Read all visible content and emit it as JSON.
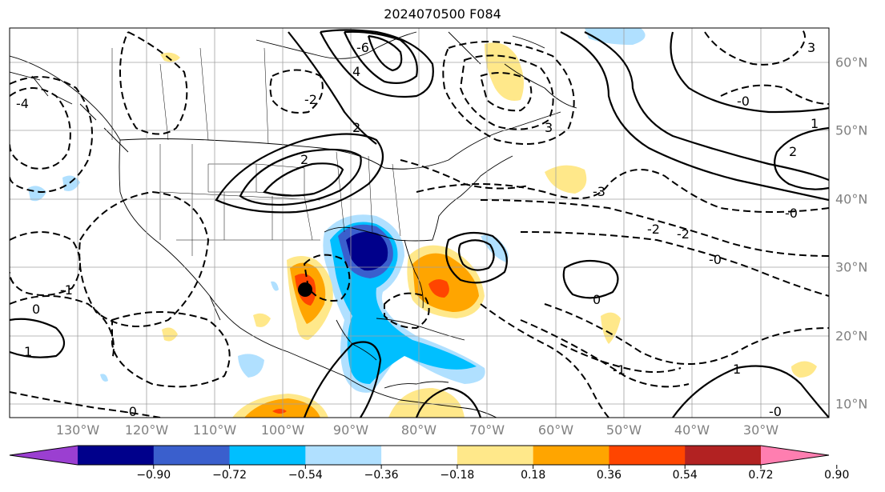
{
  "title": "2024070500 F084",
  "lon_labels": [
    "130°W",
    "120°W",
    "110°W",
    "100°W",
    "90°W",
    "80°W",
    "70°W",
    "60°W",
    "50°W",
    "40°W",
    "30°W"
  ],
  "lat_labels": [
    "60°N",
    "50°N",
    "40°N",
    "30°N",
    "20°N",
    "10°N"
  ],
  "colorbar": {
    "ticks": [
      "−0.90",
      "−0.72",
      "−0.54",
      "−0.36",
      "−0.18",
      "0.18",
      "0.36",
      "0.54",
      "0.72",
      "0.90"
    ],
    "colors": [
      "#9b3fd1",
      "#00008b",
      "#3a5fcd",
      "#00bfff",
      "#b0e0ff",
      "#ffffff",
      "#ffe88a",
      "#ffa500",
      "#ff4500",
      "#b22222",
      "#ff7eb0"
    ]
  },
  "contour_labels": [
    "-2",
    "-4",
    "-6",
    "4",
    "2",
    "-0",
    "0",
    "2",
    "1",
    "-1",
    "-3",
    "3",
    "-2",
    "-2",
    "-0",
    "0",
    "1",
    "1",
    "2",
    "3",
    "-1",
    "-0",
    "-0",
    "-0"
  ]
}
